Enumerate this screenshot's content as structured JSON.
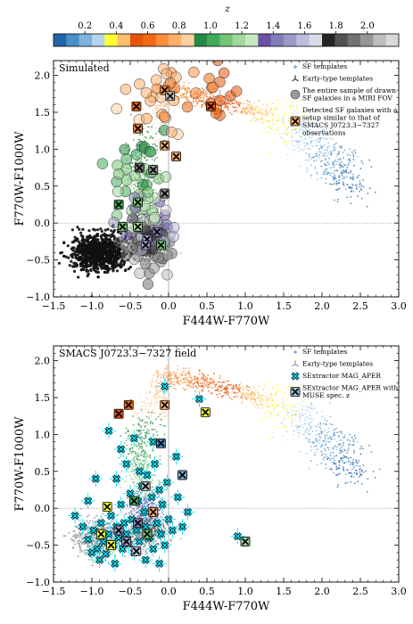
{
  "colorbar": {
    "label": "z",
    "tick_labels": [
      "0.2",
      "0.4",
      "0.6",
      "0.8",
      "1.0",
      "1.2",
      "1.4",
      "1.6",
      "1.8",
      "2.0"
    ],
    "range": [
      0.0,
      2.2
    ],
    "colors": [
      "#2166ac",
      "#4a90c8",
      "#7fb2dd",
      "#b3d5ee",
      "#ffff33",
      "#fdbf6f",
      "#e6550d",
      "#f16913",
      "#fd8d3c",
      "#fdae6b",
      "#fdd0a2",
      "#238b45",
      "#41ab5d",
      "#74c476",
      "#a1d99b",
      "#c7e9c0",
      "#6a51a3",
      "#807dba",
      "#9e9ac8",
      "#bcbddc",
      "#dadaeb",
      "#252525",
      "#525252",
      "#737373",
      "#969696",
      "#bdbdbd",
      "#d9d9d9"
    ]
  },
  "chart_data": [
    {
      "type": "scatter",
      "panel_label": "Simulated",
      "xlabel": "F444W-F770W",
      "ylabel": "F770W-F1000W",
      "xlim": [
        -1.5,
        3.0
      ],
      "ylim": [
        -1.0,
        2.2
      ],
      "x_tick_labels": [
        "−1.5",
        "−1.0",
        "−0.5",
        "0.0",
        "0.5",
        "1.0",
        "1.5",
        "2.0",
        "2.5",
        "3.0"
      ],
      "y_tick_labels": [
        "−1.0",
        "−0.5",
        "0.0",
        "0.5",
        "1.0",
        "1.5",
        "2.0"
      ],
      "reference_lines": {
        "x": 0.0,
        "y": 0.0
      },
      "legend": [
        {
          "label": "SF templates",
          "marker": "dot"
        },
        {
          "label": "Early-type templates",
          "marker": "tri"
        },
        {
          "label": "The entire sample of drawn SF galaxies in a MIRI FOV",
          "marker": "circle"
        },
        {
          "label": "Detected SF galaxies with a setup similar to that of SMACS J0723.3−7327 observations",
          "marker": "xbox"
        }
      ],
      "legend_position": "top-right",
      "early_type_cluster": {
        "x_range": [
          -1.25,
          -0.55
        ],
        "y_range": [
          -0.65,
          -0.15
        ]
      },
      "detected_sf_galaxies": [
        {
          "x": -0.42,
          "y": 1.58,
          "color": "#f16913"
        },
        {
          "x": -0.05,
          "y": 1.8,
          "color": "#fd8d3c"
        },
        {
          "x": 0.02,
          "y": 1.72,
          "color": "#bdbdbd"
        },
        {
          "x": 0.55,
          "y": 1.58,
          "color": "#e6550d"
        },
        {
          "x": -0.4,
          "y": 1.28,
          "color": "#fd8d3c"
        },
        {
          "x": -0.05,
          "y": 1.05,
          "color": "#fdae6b"
        },
        {
          "x": 0.1,
          "y": 0.9,
          "color": "#fdae6b"
        },
        {
          "x": -0.38,
          "y": 0.75,
          "color": "#737373"
        },
        {
          "x": -0.2,
          "y": 0.72,
          "color": "#969696"
        },
        {
          "x": -0.05,
          "y": 0.4,
          "color": "#969696"
        },
        {
          "x": -0.65,
          "y": 0.25,
          "color": "#41ab5d"
        },
        {
          "x": -0.4,
          "y": 0.28,
          "color": "#74c476"
        },
        {
          "x": -0.4,
          "y": -0.05,
          "color": "#a1d99b"
        },
        {
          "x": -0.15,
          "y": -0.12,
          "color": "#807dba"
        },
        {
          "x": -0.28,
          "y": -0.22,
          "color": "#9e9ac8"
        },
        {
          "x": -0.3,
          "y": -0.3,
          "color": "#9e9ac8"
        },
        {
          "x": -0.6,
          "y": -0.05,
          "color": "#74c476"
        },
        {
          "x": -0.1,
          "y": -0.3,
          "color": "#74c476"
        }
      ]
    },
    {
      "type": "scatter",
      "panel_label": "SMACS J0723.3−7327 field",
      "xlabel": "F444W-F770W",
      "ylabel": "F770W-F1000W",
      "xlim": [
        -1.5,
        3.0
      ],
      "ylim": [
        -1.0,
        2.2
      ],
      "x_tick_labels": [
        "−1.5",
        "−1.0",
        "−0.5",
        "0.0",
        "0.5",
        "1.0",
        "1.5",
        "2.0",
        "2.5",
        "3.0"
      ],
      "y_tick_labels": [
        "−1.0",
        "−0.5",
        "0.0",
        "0.5",
        "1.0",
        "1.5",
        "2.0"
      ],
      "reference_lines": {
        "x": 0.0,
        "y": 0.0
      },
      "legend": [
        {
          "label": "SF templates",
          "marker": "dot"
        },
        {
          "label": "Early-type templates",
          "marker": "tri"
        },
        {
          "label": "SExtractor MAG_APER",
          "marker": "xcyan"
        },
        {
          "label": "SExtractor MAG_APER with MUSE spec. z",
          "marker": "xbox"
        }
      ],
      "legend_position": "top-right",
      "sextractor_mag_aper": [
        {
          "x": -1.22,
          "y": -0.1
        },
        {
          "x": -1.12,
          "y": -0.25
        },
        {
          "x": -1.05,
          "y": -0.42
        },
        {
          "x": -0.98,
          "y": -0.3
        },
        {
          "x": -0.93,
          "y": -0.55
        },
        {
          "x": -0.88,
          "y": -0.2
        },
        {
          "x": -0.85,
          "y": -0.45
        },
        {
          "x": -0.82,
          "y": -0.62
        },
        {
          "x": -0.78,
          "y": -0.35
        },
        {
          "x": -0.75,
          "y": -0.1
        },
        {
          "x": -0.72,
          "y": -0.5
        },
        {
          "x": -0.7,
          "y": -0.75
        },
        {
          "x": -0.68,
          "y": -0.25
        },
        {
          "x": -0.65,
          "y": -0.4
        },
        {
          "x": -0.62,
          "y": 0.05
        },
        {
          "x": -0.6,
          "y": -0.55
        },
        {
          "x": -0.58,
          "y": -0.2
        },
        {
          "x": -0.55,
          "y": -0.35
        },
        {
          "x": -0.52,
          "y": -0.48
        },
        {
          "x": -0.5,
          "y": 0.2
        },
        {
          "x": -0.48,
          "y": -0.15
        },
        {
          "x": -0.45,
          "y": -0.6
        },
        {
          "x": -0.42,
          "y": -0.3
        },
        {
          "x": -0.4,
          "y": 0.1
        },
        {
          "x": -0.38,
          "y": -0.45
        },
        {
          "x": -0.35,
          "y": 0.3
        },
        {
          "x": -0.32,
          "y": -0.05
        },
        {
          "x": -0.3,
          "y": -0.25
        },
        {
          "x": -0.28,
          "y": 0.45
        },
        {
          "x": -0.25,
          "y": -0.4
        },
        {
          "x": -0.22,
          "y": 0.15
        },
        {
          "x": -0.2,
          "y": -0.55
        },
        {
          "x": -0.18,
          "y": 0.6
        },
        {
          "x": -0.15,
          "y": -0.2
        },
        {
          "x": -0.12,
          "y": 0.25
        },
        {
          "x": -0.1,
          "y": -0.35
        },
        {
          "x": -0.08,
          "y": 0.05
        },
        {
          "x": -0.05,
          "y": -0.5
        },
        {
          "x": -0.02,
          "y": 0.35
        },
        {
          "x": 0.0,
          "y": -0.15
        },
        {
          "x": 0.05,
          "y": -0.3
        },
        {
          "x": 0.12,
          "y": 0.15
        },
        {
          "x": 0.18,
          "y": -0.25
        },
        {
          "x": 0.25,
          "y": -0.05
        },
        {
          "x": 0.4,
          "y": 1.48
        },
        {
          "x": -0.05,
          "y": 1.65
        },
        {
          "x": -0.78,
          "y": 1.05
        },
        {
          "x": -0.62,
          "y": 0.8
        },
        {
          "x": -0.55,
          "y": 0.6
        },
        {
          "x": -0.45,
          "y": 0.95
        },
        {
          "x": 0.9,
          "y": -0.38
        },
        {
          "x": -0.95,
          "y": 0.4
        },
        {
          "x": -1.05,
          "y": 0.1
        },
        {
          "x": -0.9,
          "y": -0.7
        },
        {
          "x": -1.0,
          "y": -0.6
        },
        {
          "x": -0.3,
          "y": -0.7
        },
        {
          "x": -0.12,
          "y": -0.75
        },
        {
          "x": -0.68,
          "y": 0.4
        },
        {
          "x": -0.38,
          "y": 0.5
        },
        {
          "x": -0.2,
          "y": 0.9
        },
        {
          "x": 0.1,
          "y": 0.7
        }
      ],
      "sextractor_with_muse_z": [
        {
          "x": -0.52,
          "y": 1.4,
          "color": "#f16913"
        },
        {
          "x": -0.65,
          "y": 1.28,
          "color": "#e6550d"
        },
        {
          "x": -0.05,
          "y": 1.4,
          "color": "#fdae6b"
        },
        {
          "x": 0.48,
          "y": 1.3,
          "color": "#ffff33"
        },
        {
          "x": -0.1,
          "y": 0.88,
          "color": "#4a90c8"
        },
        {
          "x": -0.3,
          "y": 0.3,
          "color": "#bdbdbd"
        },
        {
          "x": 0.18,
          "y": 0.45,
          "color": "#7fb2dd"
        },
        {
          "x": -0.45,
          "y": 0.1,
          "color": "#41ab5d"
        },
        {
          "x": -0.2,
          "y": -0.05,
          "color": "#fdae6b"
        },
        {
          "x": -0.8,
          "y": 0.02,
          "color": "#ffff33"
        },
        {
          "x": -0.88,
          "y": -0.35,
          "color": "#ffff33"
        },
        {
          "x": -0.75,
          "y": -0.5,
          "color": "#ffff33"
        },
        {
          "x": -0.65,
          "y": -0.3,
          "color": "#9e9ac8"
        },
        {
          "x": -0.55,
          "y": -0.45,
          "color": "#9e9ac8"
        },
        {
          "x": -0.4,
          "y": -0.2,
          "color": "#807dba"
        },
        {
          "x": -0.42,
          "y": -0.58,
          "color": "#bcbddc"
        },
        {
          "x": -0.28,
          "y": -0.35,
          "color": "#74c476"
        },
        {
          "x": 1.0,
          "y": -0.45,
          "color": "#a1d99b"
        }
      ]
    }
  ]
}
